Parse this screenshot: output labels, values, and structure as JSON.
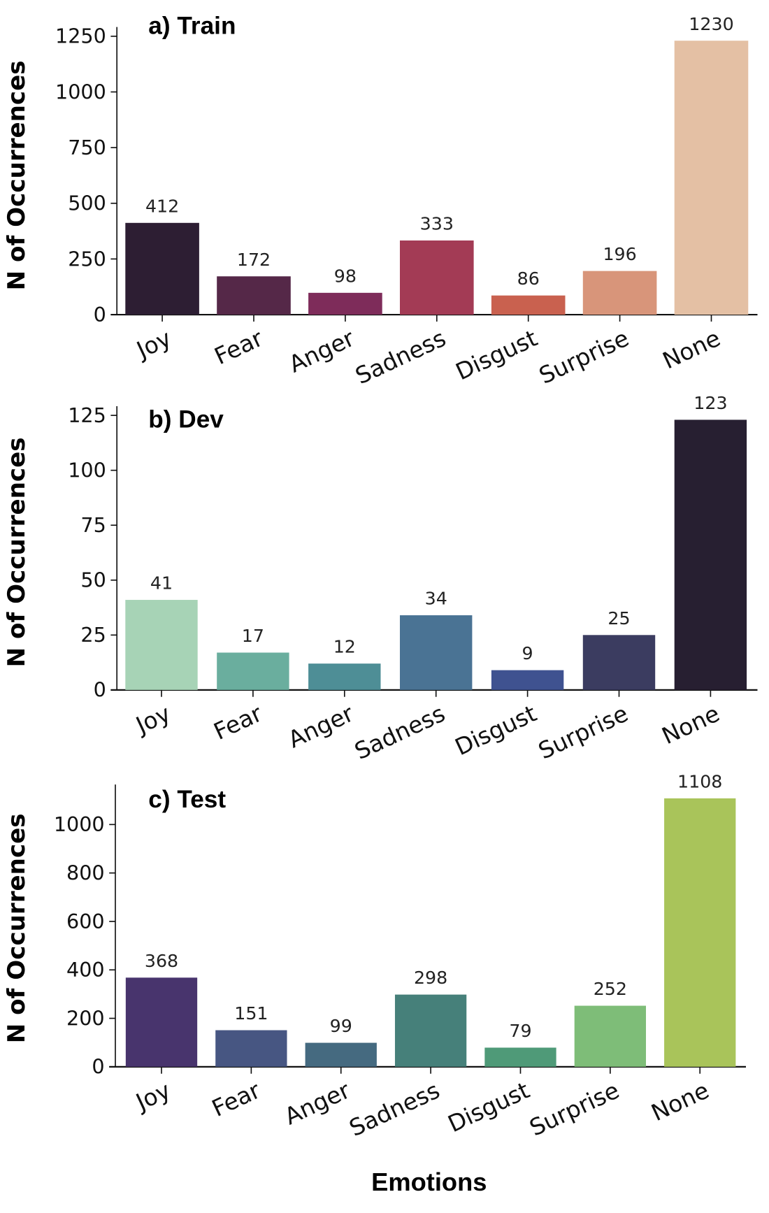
{
  "chart_data": [
    {
      "type": "bar",
      "title": "a) Train",
      "ylabel": "N of Occurrences",
      "xlabel": "",
      "categories": [
        "Joy",
        "Fear",
        "Anger",
        "Sadness",
        "Disgust",
        "Surprise",
        "None"
      ],
      "values": [
        412,
        172,
        98,
        333,
        86,
        196,
        1230
      ],
      "data_labels": [
        "412",
        "172",
        "98",
        "333",
        "86",
        "196",
        "1230"
      ],
      "yticks": [
        0,
        250,
        500,
        750,
        1000,
        1250
      ],
      "ylim": [
        0,
        1250
      ],
      "grid": false,
      "colors": [
        "#2d1e33",
        "#552848",
        "#7e2c5a",
        "#a33b55",
        "#c9614f",
        "#d8957a",
        "#e4c0a4"
      ]
    },
    {
      "type": "bar",
      "title": "b) Dev",
      "ylabel": "N of Occurrences",
      "xlabel": "",
      "categories": [
        "Joy",
        "Fear",
        "Anger",
        "Sadness",
        "Disgust",
        "Surprise",
        "None"
      ],
      "values": [
        41,
        17,
        12,
        34,
        9,
        25,
        123
      ],
      "data_labels": [
        "41",
        "17",
        "12",
        "34",
        "9",
        "25",
        "123"
      ],
      "yticks": [
        0,
        25,
        50,
        75,
        100,
        125
      ],
      "ylim": [
        0,
        125
      ],
      "grid": false,
      "colors": [
        "#a7d3b6",
        "#6aae9e",
        "#4e8e96",
        "#4a7394",
        "#3f5290",
        "#3b3c60",
        "#271f31"
      ]
    },
    {
      "type": "bar",
      "title": "c) Test",
      "ylabel": "N of Occurrences",
      "xlabel": "Emotions",
      "categories": [
        "Joy",
        "Fear",
        "Anger",
        "Sadness",
        "Disgust",
        "Surprise",
        "None"
      ],
      "values": [
        368,
        151,
        99,
        298,
        79,
        252,
        1108
      ],
      "data_labels": [
        "368",
        "151",
        "99",
        "298",
        "79",
        "252",
        "1108"
      ],
      "yticks": [
        0,
        200,
        400,
        600,
        800,
        1000
      ],
      "ylim": [
        0,
        1000
      ],
      "grid": false,
      "colors": [
        "#48346d",
        "#475682",
        "#456a80",
        "#46807a",
        "#4f9a78",
        "#7ebd78",
        "#a9c45a"
      ]
    }
  ]
}
